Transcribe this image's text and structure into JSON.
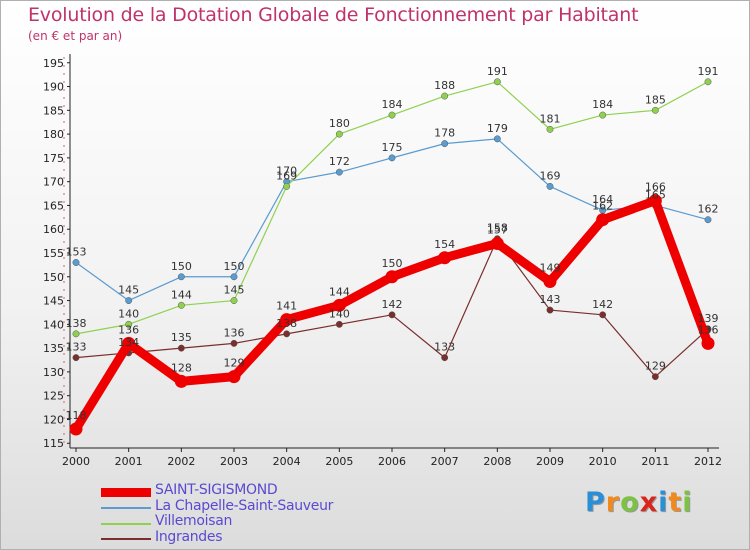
{
  "title": "Evolution de la Dotation Globale de Fonctionnement par Habitant",
  "subtitle": "(en € et par an)",
  "logo": {
    "letters": [
      "P",
      "r",
      "o",
      "x",
      "i",
      "t",
      "i"
    ],
    "colors": [
      "#2a8fd6",
      "#f08a1e",
      "#7cc243",
      "#d9251c",
      "#2a8fd6",
      "#f08a1e",
      "#7cc243"
    ]
  },
  "chart_data": {
    "type": "line",
    "title": "Evolution de la Dotation Globale de Fonctionnement par Habitant",
    "subtitle": "(en € et par an)",
    "xlabel": "",
    "ylabel": "",
    "ylim": [
      114,
      196
    ],
    "yticks": [
      115,
      120,
      125,
      130,
      135,
      140,
      145,
      150,
      155,
      160,
      165,
      170,
      175,
      180,
      185,
      190,
      195
    ],
    "grid": false,
    "legend_position": "bottom-left",
    "x": [
      "2000",
      "2001",
      "2002",
      "2003",
      "2004",
      "2005",
      "2006",
      "2007",
      "2008",
      "2009",
      "2010",
      "2011",
      "2012"
    ],
    "series": [
      {
        "name": "La Chapelle-Saint-Sauveur",
        "color": "#5a9bd0",
        "width": "thin",
        "values": [
          153,
          145,
          150,
          150,
          170,
          172,
          175,
          178,
          179,
          169,
          164,
          165,
          162
        ],
        "labels": [
          "153",
          "145",
          "150",
          "150",
          "170",
          "172",
          "175",
          "178",
          "179",
          "169",
          "164",
          "165",
          "162"
        ]
      },
      {
        "name": "Villemoisan",
        "color": "#8fd14f",
        "width": "thin",
        "values": [
          138,
          140,
          144,
          145,
          169,
          180,
          184,
          188,
          191,
          181,
          184,
          185,
          191
        ],
        "labels": [
          "138",
          "140",
          "144",
          "145",
          "169",
          "180",
          "184",
          "188",
          "191",
          "181",
          "184",
          "185",
          "191"
        ]
      },
      {
        "name": "Ingrandes",
        "color": "#7a2e2e",
        "width": "thin",
        "values": [
          133,
          134,
          135,
          136,
          138,
          140,
          142,
          133,
          158,
          143,
          142,
          129,
          139
        ],
        "labels": [
          "133",
          "134",
          "135",
          "136",
          "138",
          "140",
          "142",
          "133",
          "158",
          "143",
          "142",
          "129",
          "139"
        ]
      },
      {
        "name": "SAINT-SIGISMOND",
        "color": "#ee0000",
        "width": "thick",
        "values": [
          118,
          136,
          128,
          129,
          141,
          144,
          150,
          154,
          157,
          149,
          162,
          166,
          136
        ],
        "labels": [
          "118",
          "136",
          "128",
          "129",
          "141",
          "144",
          "150",
          "154",
          "157",
          "149",
          "162",
          "166",
          "136"
        ]
      }
    ],
    "legend_order": [
      "SAINT-SIGISMOND",
      "La Chapelle-Saint-Sauveur",
      "Villemoisan",
      "Ingrandes"
    ]
  }
}
